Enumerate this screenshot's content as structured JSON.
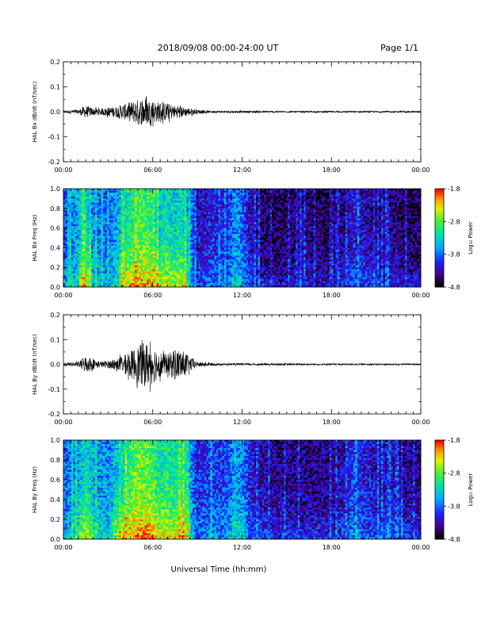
{
  "header": {
    "title": "2018/09/08  00:00-24:00 UT",
    "page": "Page 1/1"
  },
  "xaxis": {
    "label": "Universal Time (hh:mm)",
    "ticks": [
      "00:00",
      "06:00",
      "12:00",
      "18:00",
      "00:00"
    ]
  },
  "chart_data": [
    {
      "type": "line",
      "ylabel": "HAL Bx dB/dt (nT/sec)",
      "xlim": [
        0,
        24
      ],
      "ylim": [
        -0.2,
        0.2
      ],
      "yticks": [
        "0.2",
        "0.1",
        "0.0",
        "-0.1",
        "-0.2"
      ],
      "xticks": [
        "00:00",
        "06:00",
        "12:00",
        "18:00",
        "00:00"
      ],
      "envelope": {
        "hours": [
          0,
          1,
          1.5,
          2,
          2.5,
          3,
          3.5,
          4,
          4.5,
          5,
          5.5,
          6,
          6.5,
          7,
          7.5,
          8,
          8.5,
          9,
          10,
          11,
          12,
          13,
          14,
          15,
          16,
          17,
          18,
          19,
          20,
          21,
          22,
          23,
          24
        ],
        "amplitude": [
          0.005,
          0.008,
          0.025,
          0.015,
          0.012,
          0.018,
          0.022,
          0.03,
          0.04,
          0.05,
          0.055,
          0.045,
          0.04,
          0.035,
          0.025,
          0.02,
          0.015,
          0.008,
          0.004,
          0.004,
          0.004,
          0.004,
          0.003,
          0.003,
          0.003,
          0.003,
          0.003,
          0.003,
          0.003,
          0.003,
          0.003,
          0.003,
          0.003
        ]
      }
    },
    {
      "type": "heatmap",
      "ylabel": "HAL Bx Freq (Hz)",
      "xlim": [
        0,
        24
      ],
      "ylim": [
        0,
        1.0
      ],
      "yticks": [
        "1.0",
        "0.8",
        "0.6",
        "0.4",
        "0.2",
        "0.0"
      ],
      "xticks": [
        "00:00",
        "06:00",
        "12:00",
        "18:00",
        "00:00"
      ],
      "colorbar": {
        "label": "Log₁₀ Power",
        "range": [
          -4.8,
          -1.8
        ],
        "ticks": [
          "-1.8",
          "-2.8",
          "-3.8",
          "-4.8"
        ]
      },
      "activity": {
        "hours": [
          0,
          1,
          1.5,
          2,
          3,
          4,
          4.5,
          5,
          5.5,
          6,
          6.5,
          7,
          7.5,
          8,
          8.5,
          9,
          10,
          11,
          11.5,
          12,
          12.5,
          13,
          14,
          15,
          16,
          17,
          18,
          19,
          19.5,
          20,
          21,
          22,
          23,
          24
        ],
        "level": [
          0.35,
          0.5,
          0.6,
          0.45,
          0.4,
          0.55,
          0.65,
          0.7,
          0.7,
          0.65,
          0.55,
          0.6,
          0.55,
          0.6,
          0.45,
          0.25,
          0.3,
          0.3,
          0.45,
          0.4,
          0.25,
          0.2,
          0.15,
          0.15,
          0.2,
          0.15,
          0.15,
          0.2,
          0.3,
          0.25,
          0.2,
          0.2,
          0.15,
          0.15
        ]
      }
    },
    {
      "type": "line",
      "ylabel": "HAL By dB/dt (nT/sec)",
      "xlim": [
        0,
        24
      ],
      "ylim": [
        -0.2,
        0.2
      ],
      "yticks": [
        "0.2",
        "0.1",
        "0.0",
        "-0.1",
        "-0.2"
      ],
      "xticks": [
        "00:00",
        "06:00",
        "12:00",
        "18:00",
        "00:00"
      ],
      "envelope": {
        "hours": [
          0,
          1,
          1.5,
          2,
          2.5,
          3,
          3.5,
          4,
          4.5,
          5,
          5.5,
          6,
          6.5,
          7,
          7.5,
          8,
          8.5,
          9,
          10,
          11,
          12,
          13,
          14,
          15,
          16,
          17,
          18,
          19,
          20,
          21,
          22,
          23,
          24
        ],
        "amplitude": [
          0.006,
          0.01,
          0.035,
          0.02,
          0.012,
          0.015,
          0.02,
          0.035,
          0.055,
          0.075,
          0.09,
          0.08,
          0.05,
          0.04,
          0.065,
          0.055,
          0.03,
          0.01,
          0.005,
          0.004,
          0.004,
          0.004,
          0.004,
          0.004,
          0.003,
          0.003,
          0.003,
          0.003,
          0.003,
          0.003,
          0.003,
          0.003,
          0.003
        ]
      }
    },
    {
      "type": "heatmap",
      "ylabel": "HAL By Freq (Hz)",
      "xlim": [
        0,
        24
      ],
      "ylim": [
        0,
        1.0
      ],
      "yticks": [
        "1.0",
        "0.8",
        "0.6",
        "0.4",
        "0.2",
        "0.0"
      ],
      "xticks": [
        "00:00",
        "06:00",
        "12:00",
        "18:00",
        "00:00"
      ],
      "colorbar": {
        "label": "Log₁₀ Power",
        "range": [
          -4.8,
          -1.8
        ],
        "ticks": [
          "-1.8",
          "-2.8",
          "-3.8",
          "-4.8"
        ]
      },
      "activity": {
        "hours": [
          0,
          1,
          1.5,
          2,
          3,
          4,
          4.5,
          5,
          5.5,
          6,
          6.5,
          7,
          7.5,
          8,
          8.5,
          9,
          10,
          11,
          11.5,
          12,
          12.5,
          13,
          14,
          15,
          16,
          17,
          18,
          19,
          19.5,
          20,
          21,
          22,
          23,
          24
        ],
        "level": [
          0.4,
          0.5,
          0.6,
          0.5,
          0.45,
          0.6,
          0.7,
          0.75,
          0.75,
          0.7,
          0.6,
          0.65,
          0.6,
          0.65,
          0.5,
          0.3,
          0.35,
          0.35,
          0.5,
          0.45,
          0.3,
          0.25,
          0.2,
          0.2,
          0.2,
          0.2,
          0.2,
          0.25,
          0.35,
          0.3,
          0.25,
          0.25,
          0.2,
          0.2
        ]
      }
    }
  ]
}
